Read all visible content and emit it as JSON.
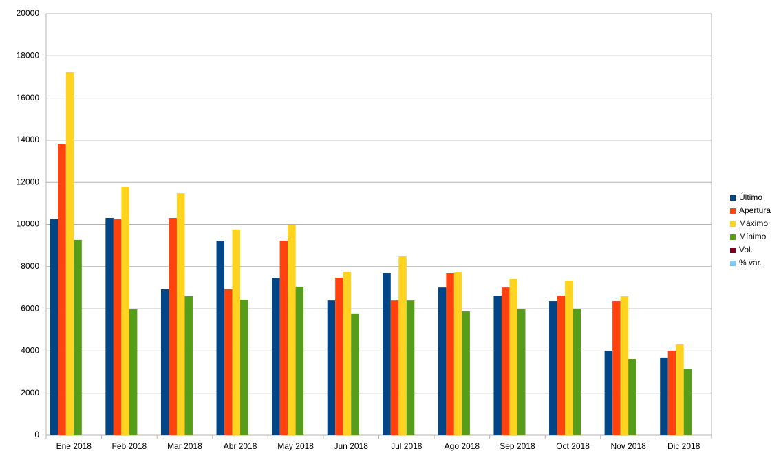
{
  "chart_data": {
    "type": "bar",
    "categories": [
      "Ene 2018",
      "Feb 2018",
      "Mar 2018",
      "Abr 2018",
      "May 2018",
      "Jun 2018",
      "Jul 2018",
      "Ago 2018",
      "Sep 2018",
      "Oct 2018",
      "Nov 2018",
      "Dic 2018"
    ],
    "series": [
      {
        "name": "Último",
        "color": "#004586",
        "values": [
          10250,
          10310,
          6920,
          9230,
          7470,
          6390,
          7700,
          7010,
          6620,
          6360,
          4010,
          3690
        ]
      },
      {
        "name": "Apertura",
        "color": "#ff420e",
        "values": [
          13830,
          10250,
          10310,
          6920,
          9230,
          7470,
          6390,
          7700,
          7010,
          6620,
          6360,
          4010
        ]
      },
      {
        "name": "Máximo",
        "color": "#ffd320",
        "values": [
          17230,
          11780,
          11480,
          9760,
          9980,
          7770,
          8480,
          7730,
          7410,
          7340,
          6590,
          4310
        ]
      },
      {
        "name": "Mínimo",
        "color": "#579d1c",
        "values": [
          9270,
          5970,
          6590,
          6430,
          7050,
          5780,
          6390,
          5870,
          5970,
          6000,
          3620,
          3160
        ]
      },
      {
        "name": "Vol.",
        "color": "#7e0021",
        "values": [
          null,
          null,
          null,
          null,
          null,
          null,
          null,
          null,
          null,
          null,
          null,
          null
        ]
      },
      {
        "name": "% var.",
        "color": "#83caff",
        "values": [
          null,
          null,
          null,
          null,
          null,
          null,
          null,
          null,
          null,
          null,
          null,
          null
        ]
      }
    ],
    "ylim": [
      0,
      20000
    ],
    "yticks": [
      0,
      2000,
      4000,
      6000,
      8000,
      10000,
      12000,
      14000,
      16000,
      18000,
      20000
    ],
    "grid": true,
    "legend": "right"
  }
}
